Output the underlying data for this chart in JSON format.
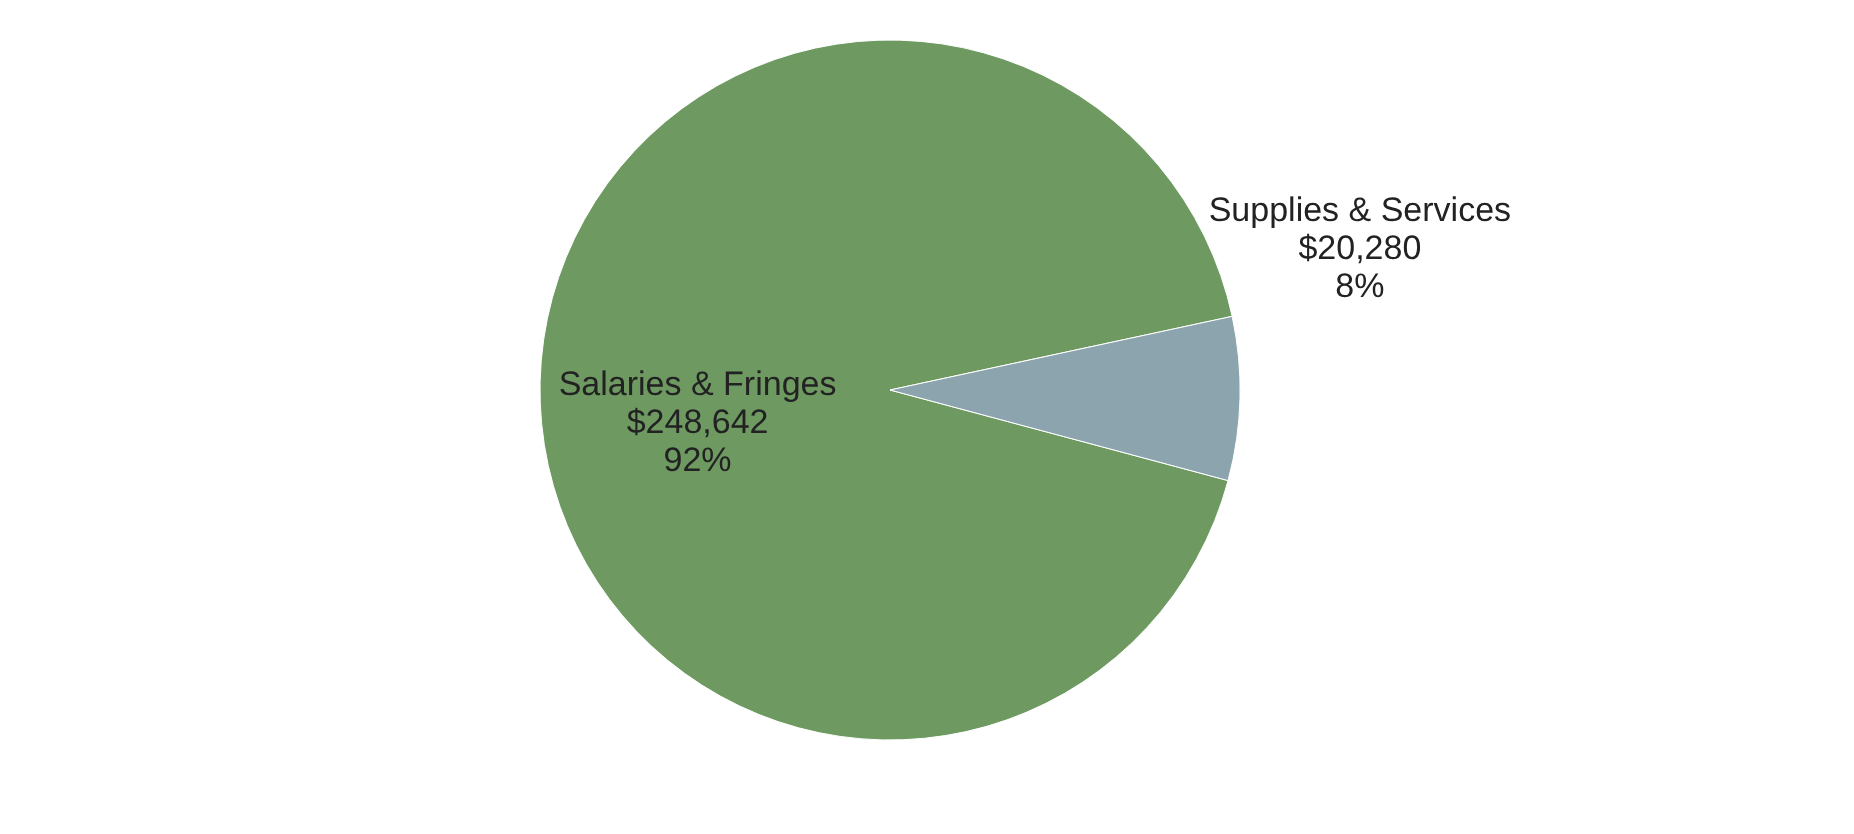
{
  "chart_data": {
    "type": "pie",
    "categories": [
      "Salaries & Fringes",
      "Supplies & Services"
    ],
    "values": [
      248642,
      20280
    ],
    "colors": [
      "#6e9a62",
      "#8ba4ae"
    ],
    "value_labels": [
      "$248,642\n92%",
      "$20,280\n8%"
    ],
    "legend": false
  }
}
